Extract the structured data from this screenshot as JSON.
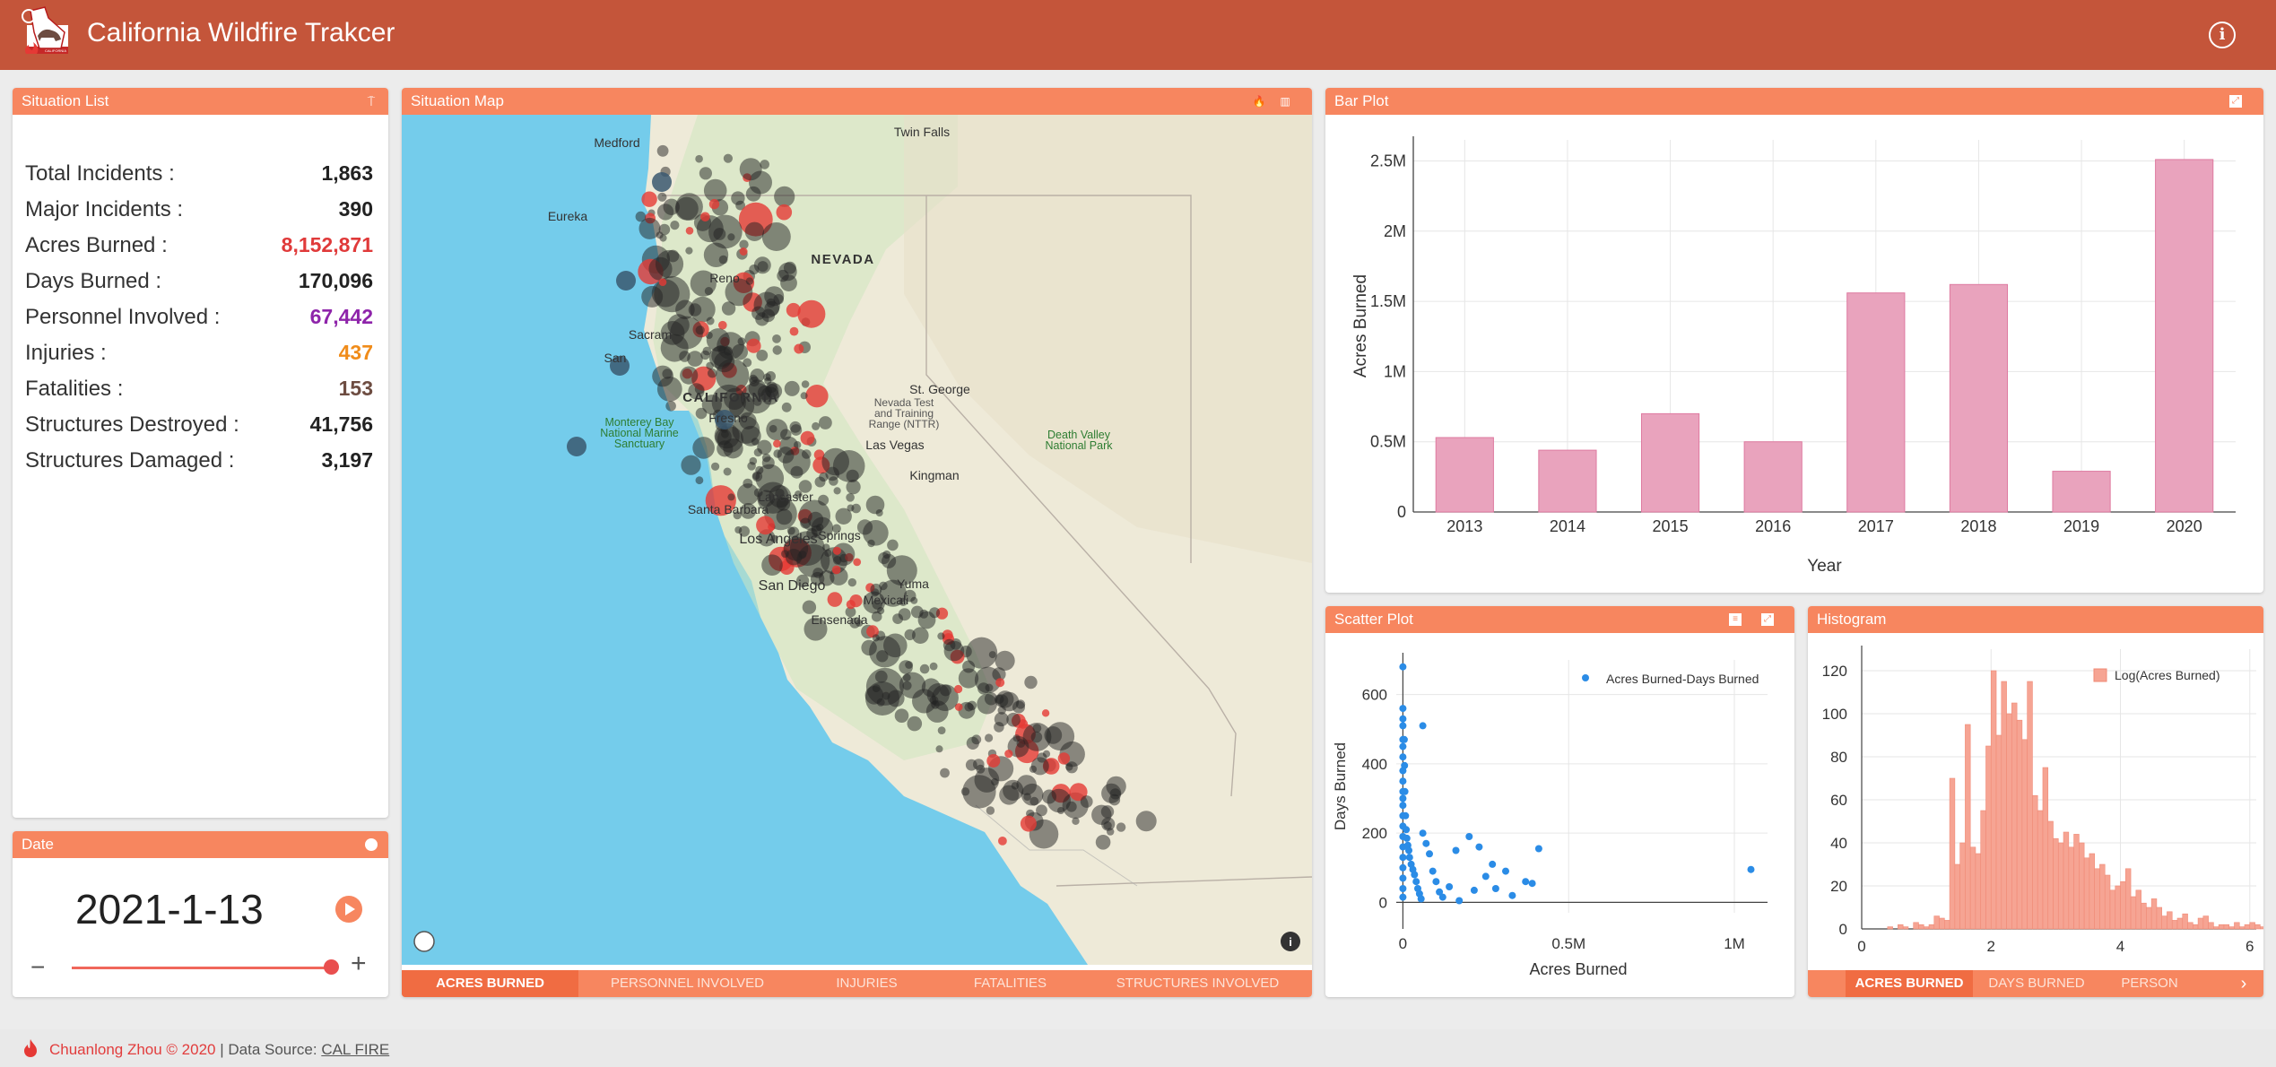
{
  "app": {
    "title": "California Wildfire Trakcer",
    "accent": "#c4553a",
    "panel_header_color": "#f7865f",
    "logo_text": "CALIFORNIA"
  },
  "situation_list": {
    "title": "Situation List",
    "items": [
      {
        "label": "Total Incidents :",
        "value": "1,863",
        "color": "#222222"
      },
      {
        "label": "Major Incidents :",
        "value": "390",
        "color": "#222222"
      },
      {
        "label": "Acres Burned :",
        "value": "8,152,871",
        "color": "#e03a3a"
      },
      {
        "label": "Days Burned :",
        "value": "170,096",
        "color": "#222222"
      },
      {
        "label": "Personnel Involved :",
        "value": "67,442",
        "color": "#8e24aa"
      },
      {
        "label": "Injuries :",
        "value": "437",
        "color": "#f08c1a"
      },
      {
        "label": "Fatalities :",
        "value": "153",
        "color": "#6d4c41"
      },
      {
        "label": "Structures Destroyed :",
        "value": "41,756",
        "color": "#222222"
      },
      {
        "label": "Structures Damaged :",
        "value": "3,197",
        "color": "#222222"
      }
    ]
  },
  "date_panel": {
    "title": "Date",
    "value": "2021-1-13",
    "minus": "−",
    "plus": "+",
    "slider_position": 1.0
  },
  "situation_map": {
    "title": "Situation Map",
    "labels": [
      {
        "text": "Medford",
        "cls": "city"
      },
      {
        "text": "Twin Falls",
        "cls": "city"
      },
      {
        "text": "Eureka",
        "cls": "city"
      },
      {
        "text": "NEVADA",
        "cls": "state"
      },
      {
        "text": "Reno",
        "cls": "city"
      },
      {
        "text": "Sacram",
        "cls": "city"
      },
      {
        "text": "San",
        "cls": "city"
      },
      {
        "text": "CALIFORNIA",
        "cls": "state"
      },
      {
        "text": "Fresno",
        "cls": "city"
      },
      {
        "text": "Monterey Bay",
        "cls": "park"
      },
      {
        "text": "National Marine",
        "cls": "park"
      },
      {
        "text": "Sanctuary",
        "cls": "park"
      },
      {
        "text": "Death Valley",
        "cls": "park"
      },
      {
        "text": "National Park",
        "cls": "park"
      },
      {
        "text": "Nevada Test",
        "cls": "small"
      },
      {
        "text": "and Training",
        "cls": "small"
      },
      {
        "text": "Range (NTTR)",
        "cls": "small"
      },
      {
        "text": "Las Vegas",
        "cls": "city"
      },
      {
        "text": "St. George",
        "cls": "city"
      },
      {
        "text": "Kingman",
        "cls": "city"
      },
      {
        "text": "Lancaster",
        "cls": "city"
      },
      {
        "text": "Santa Barbara",
        "cls": "city"
      },
      {
        "text": "Los Angeles",
        "cls": "citybig"
      },
      {
        "text": "Springs",
        "cls": "city"
      },
      {
        "text": "San Diego",
        "cls": "citybig"
      },
      {
        "text": "Yuma",
        "cls": "city"
      },
      {
        "text": "Mexicali",
        "cls": "city"
      },
      {
        "text": "Ensenada",
        "cls": "city"
      }
    ],
    "tabs": [
      "ACRES BURNED",
      "PERSONNEL INVOLVED",
      "INJURIES",
      "FATALITIES",
      "STRUCTURES INVOLVED"
    ],
    "active_tab": 0
  },
  "bar_plot": {
    "title": "Bar Plot"
  },
  "scatter_plot": {
    "title": "Scatter Plot"
  },
  "histogram": {
    "title": "Histogram",
    "tabs": [
      "ACRES BURNED",
      "DAYS BURNED",
      "PERSON"
    ],
    "active_tab": 0
  },
  "chart_data": [
    {
      "type": "bar",
      "categories": [
        "2013",
        "2014",
        "2015",
        "2016",
        "2017",
        "2018",
        "2019",
        "2020"
      ],
      "values": [
        530000,
        440000,
        700000,
        500000,
        1560000,
        1620000,
        290000,
        2510000
      ],
      "xlabel": "Year",
      "ylabel": "Acres Burned",
      "ylim": [
        0,
        2650000
      ],
      "yticks": [
        0,
        500000,
        1000000,
        1500000,
        2000000,
        2500000
      ],
      "ytick_labels": [
        "0",
        "0.5M",
        "1M",
        "1.5M",
        "2M",
        "2.5M"
      ],
      "color": "#e9a3bd",
      "grid": true
    },
    {
      "type": "scatter",
      "series": [
        {
          "name": "Acres Burned-Days Burned",
          "color": "#2b8ce6"
        }
      ],
      "points": [
        [
          0,
          680
        ],
        [
          0,
          560
        ],
        [
          0,
          530
        ],
        [
          0,
          510
        ],
        [
          0,
          470
        ],
        [
          0,
          450
        ],
        [
          0,
          420
        ],
        [
          0,
          380
        ],
        [
          0,
          350
        ],
        [
          0,
          320
        ],
        [
          0,
          300
        ],
        [
          0,
          280
        ],
        [
          0,
          250
        ],
        [
          0,
          220
        ],
        [
          0,
          190
        ],
        [
          0,
          160
        ],
        [
          0,
          130
        ],
        [
          0,
          100
        ],
        [
          0,
          70
        ],
        [
          0,
          40
        ],
        [
          0,
          15
        ],
        [
          4000,
          470
        ],
        [
          5000,
          395
        ],
        [
          6000,
          320
        ],
        [
          8000,
          250
        ],
        [
          10000,
          210
        ],
        [
          12000,
          185
        ],
        [
          15000,
          165
        ],
        [
          18000,
          150
        ],
        [
          20000,
          130
        ],
        [
          25000,
          110
        ],
        [
          30000,
          95
        ],
        [
          35000,
          80
        ],
        [
          40000,
          60
        ],
        [
          45000,
          40
        ],
        [
          50000,
          25
        ],
        [
          55000,
          10
        ],
        [
          60000,
          200
        ],
        [
          70000,
          170
        ],
        [
          80000,
          140
        ],
        [
          90000,
          90
        ],
        [
          100000,
          60
        ],
        [
          110000,
          30
        ],
        [
          120000,
          15
        ],
        [
          60000,
          510
        ],
        [
          140000,
          45
        ],
        [
          160000,
          150
        ],
        [
          170000,
          5
        ],
        [
          200000,
          190
        ],
        [
          215000,
          35
        ],
        [
          230000,
          160
        ],
        [
          250000,
          75
        ],
        [
          270000,
          110
        ],
        [
          280000,
          40
        ],
        [
          310000,
          90
        ],
        [
          330000,
          20
        ],
        [
          370000,
          60
        ],
        [
          390000,
          55
        ],
        [
          410000,
          155
        ],
        [
          1050000,
          95
        ]
      ],
      "xlabel": "Acres Burned",
      "ylabel": "Days Burned",
      "xlim": [
        -20000,
        1100000
      ],
      "ylim": [
        -30,
        700
      ],
      "xticks": [
        0,
        500000,
        1000000
      ],
      "xtick_labels": [
        "0",
        "0.5M",
        "1M"
      ],
      "yticks": [
        0,
        200,
        400,
        600
      ],
      "legend": "top-right",
      "grid": true
    },
    {
      "type": "bar",
      "title": "",
      "series": [
        {
          "name": "Log(Acres Burned)",
          "color": "#f6a493"
        }
      ],
      "bin_width": 0.08,
      "bins_start": 0.4,
      "values": [
        1,
        0,
        2,
        1,
        0,
        3,
        2,
        1,
        2,
        6,
        5,
        4,
        70,
        30,
        40,
        95,
        38,
        35,
        55,
        85,
        120,
        90,
        115,
        100,
        105,
        97,
        88,
        115,
        62,
        55,
        75,
        50,
        42,
        40,
        45,
        38,
        44,
        40,
        33,
        35,
        28,
        30,
        25,
        18,
        20,
        22,
        28,
        15,
        18,
        12,
        10,
        14,
        10,
        6,
        8,
        4,
        5,
        7,
        3,
        2,
        5,
        6,
        3,
        1,
        2,
        2,
        1,
        3,
        1,
        2,
        3,
        2,
        1
      ],
      "xlabel": "",
      "ylabel": "",
      "xlim": [
        0,
        6.1
      ],
      "ylim": [
        0,
        130
      ],
      "xticks": [
        0,
        2,
        4,
        6
      ],
      "yticks": [
        0,
        20,
        40,
        60,
        80,
        100,
        120
      ],
      "legend": "top-right",
      "grid": true
    }
  ],
  "footer": {
    "author": "Chuanlong Zhou © 2020",
    "sep": " | Data Source: ",
    "link": "CAL FIRE"
  }
}
